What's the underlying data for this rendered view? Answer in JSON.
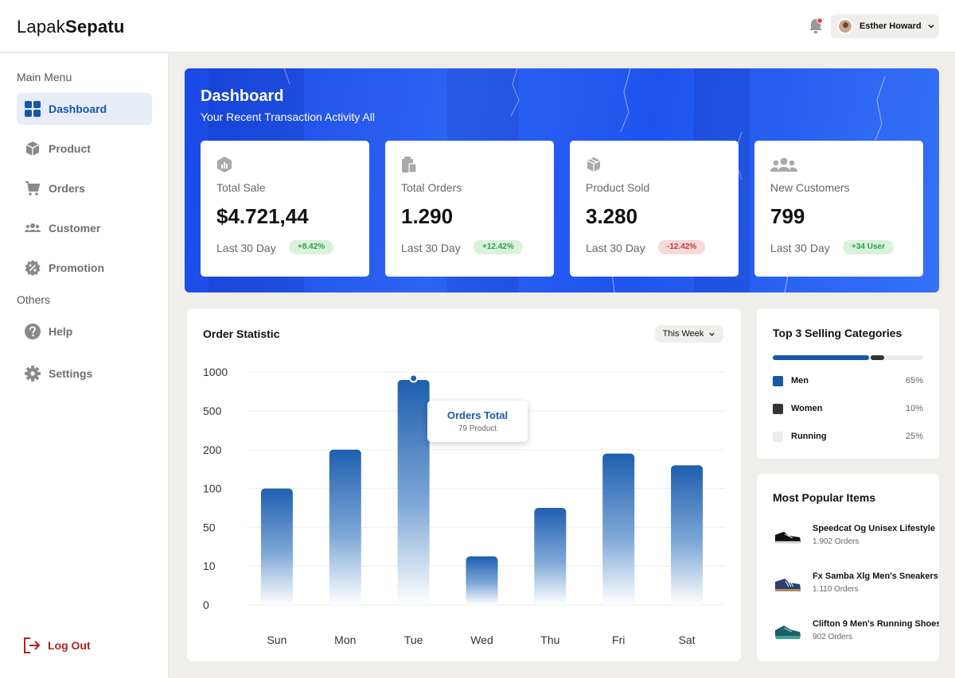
{
  "header": {
    "logo_light": "Lapak",
    "logo_bold": "Sepatu",
    "user_name": "Esther Howard"
  },
  "sidebar": {
    "main_heading": "Main Menu",
    "items": [
      {
        "label": "Dashboard",
        "icon": "grid-icon",
        "active": true
      },
      {
        "label": "Product",
        "icon": "box-icon"
      },
      {
        "label": "Orders",
        "icon": "cart-icon"
      },
      {
        "label": "Customer",
        "icon": "users-icon"
      },
      {
        "label": "Promotion",
        "icon": "percent-badge-icon"
      }
    ],
    "others_heading": "Others",
    "others": [
      {
        "label": "Help",
        "icon": "question-icon"
      },
      {
        "label": "Settings",
        "icon": "gear-icon"
      }
    ],
    "logout_label": "Log Out"
  },
  "banner": {
    "title": "Dashboard",
    "subtitle": "Your Recent Transaction Activity All",
    "cards": [
      {
        "icon": "chart-box-icon",
        "label": "Total Sale",
        "value": "$4.721,44",
        "period": "Last 30 Day",
        "change": "+8.42%",
        "trend": "positive"
      },
      {
        "icon": "clipboard-icon",
        "label": "Total Orders",
        "value": "1.290",
        "period": "Last 30 Day",
        "change": "+12.42%",
        "trend": "positive"
      },
      {
        "icon": "package-icon",
        "label": "Product Sold",
        "value": "3.280",
        "period": "Last 30 Day",
        "change": "-12.42%",
        "trend": "negative"
      },
      {
        "icon": "customers-icon",
        "label": "New Customers",
        "value": "799",
        "period": "Last 30 Day",
        "change": "+34 User",
        "trend": "positive"
      }
    ]
  },
  "order_statistic": {
    "title": "Order Statistic",
    "range_select": "This Week",
    "tooltip": {
      "title": "Orders Total",
      "subtitle": "79 Product"
    }
  },
  "chart_data": {
    "type": "bar",
    "categories": [
      "Sun",
      "Mon",
      "Tue",
      "Wed",
      "Thu",
      "Fri",
      "Sat"
    ],
    "values": [
      100,
      200,
      900,
      20,
      75,
      190,
      160
    ],
    "y_ticks": [
      "1000",
      "500",
      "200",
      "100",
      "50",
      "10",
      "0"
    ],
    "highlighted_category": "Tue",
    "grid": true,
    "bar_color": "#1f5fb0"
  },
  "top_categories": {
    "title": "Top 3 Selling Categories",
    "items": [
      {
        "name": "Men",
        "percent": "65%",
        "share": 65,
        "color": "#1856a8"
      },
      {
        "name": "Women",
        "percent": "10%",
        "share": 10,
        "color": "#333333"
      },
      {
        "name": "Running",
        "percent": "25%",
        "share": 25,
        "color": "#ececec"
      }
    ]
  },
  "popular_items": {
    "title": "Most Popular Items",
    "items": [
      {
        "name": "Speedcat Og Unisex Lifestyle",
        "orders": "1.902 Orders",
        "icon": "black-sneaker-icon"
      },
      {
        "name": "Fx Samba Xlg Men's Sneakers",
        "orders": "1.110 Orders",
        "icon": "blue-sneaker-icon"
      },
      {
        "name": "Clifton 9 Men's Running Shoes",
        "orders": "902 Orders",
        "icon": "teal-running-shoe-icon"
      }
    ]
  }
}
